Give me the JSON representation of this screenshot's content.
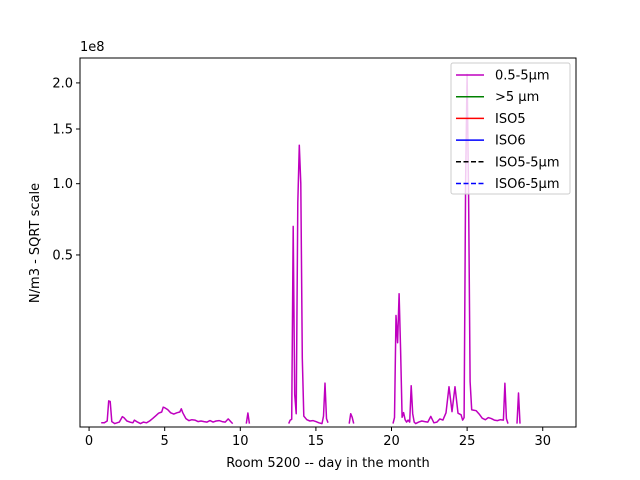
{
  "chart_data": {
    "type": "line",
    "xlabel": "Room 5200 -- day in the month",
    "ylabel": "N/m3 - SQRT scale",
    "offset_text": "1e8",
    "y_scale": "sqrt",
    "xlim": [
      -0.6,
      32.2
    ],
    "ylim": [
      0,
      2.3
    ],
    "x_ticks": [
      0,
      5,
      10,
      15,
      20,
      25,
      30
    ],
    "y_ticks": [
      0.5,
      1.0,
      1.5,
      2.0
    ],
    "y_tick_labels": [
      "0.5",
      "1.0",
      "1.5",
      "2.0"
    ],
    "x_tick_labels": [
      "0",
      "5",
      "10",
      "15",
      "20",
      "25",
      "30"
    ],
    "grid": false,
    "legend_position": "upper right",
    "legend": [
      {
        "label": "0.5-5µm",
        "color": "#bf00bf",
        "style": "solid"
      },
      {
        "label": ">5 µm",
        "color": "#008000",
        "style": "solid"
      },
      {
        "label": "ISO5",
        "color": "#ff0000",
        "style": "solid"
      },
      {
        "label": "ISO6",
        "color": "#0000ff",
        "style": "solid"
      },
      {
        "label": "ISO5-5µm",
        "color": "#000000",
        "style": "dashed"
      },
      {
        "label": "ISO6-5µm",
        "color": "#0000ff",
        "style": "dashed"
      }
    ],
    "series": [
      {
        "name": "0.5-5µm",
        "color": "#bf00bf",
        "segments": [
          {
            "x": [
              0.8,
              1.0,
              1.2,
              1.3,
              1.4,
              1.5,
              1.7,
              2.0,
              2.2,
              2.3,
              2.5,
              2.7,
              2.9,
              3.0,
              3.2,
              3.4,
              3.6,
              3.8,
              4.0,
              4.2,
              4.4,
              4.6,
              4.8,
              4.9,
              5.0,
              5.2,
              5.4,
              5.6,
              5.8,
              6.0,
              6.1,
              6.2,
              6.4,
              6.6,
              6.8,
              7.0,
              7.2,
              7.4,
              7.6,
              7.8,
              8.0,
              8.2,
              8.4,
              8.6,
              8.8,
              9.0,
              9.2,
              9.4,
              9.5
            ],
            "y": [
              0.0003,
              0.0003,
              0.0006,
              0.0115,
              0.011,
              0.0005,
              0.0002,
              0.0004,
              0.0018,
              0.0015,
              0.0006,
              0.0004,
              0.0003,
              0.0008,
              0.0004,
              0.0002,
              0.0004,
              0.0003,
              0.0006,
              0.0012,
              0.0021,
              0.0032,
              0.0038,
              0.0066,
              0.0063,
              0.0051,
              0.0034,
              0.0028,
              0.0034,
              0.0038,
              0.0056,
              0.0034,
              0.0012,
              0.0007,
              0.0009,
              0.0008,
              0.0005,
              0.0006,
              0.0005,
              0.0004,
              0.0007,
              0.0004,
              0.0006,
              0.0007,
              0.0005,
              0.0004,
              0.0011,
              0.0004,
              0.0002
            ]
          },
          {
            "x": [
              10.4,
              10.5,
              10.6
            ],
            "y": [
              0.0002,
              0.0033,
              0.0002
            ]
          },
          {
            "x": [
              13.2,
              13.3,
              13.4,
              13.5,
              13.6,
              13.7,
              13.8,
              13.9,
              14.0,
              14.1,
              14.2,
              14.4,
              14.6,
              14.8,
              15.0,
              15.2,
              15.4,
              15.5,
              15.6,
              15.7,
              15.8
            ],
            "y": [
              0.0002,
              0.0008,
              0.001,
              0.68,
              0.018,
              0.003,
              0.85,
              1.34,
              1.0,
              0.08,
              0.002,
              0.0009,
              0.0006,
              0.0007,
              0.0005,
              0.0003,
              0.0002,
              0.002,
              0.0325,
              0.0012,
              0.0003
            ]
          },
          {
            "x": [
              16.3
            ],
            "y": [
              0.0002
            ]
          },
          {
            "x": [
              17.2,
              17.3,
              17.4,
              17.5
            ],
            "y": [
              0.0002,
              0.003,
              0.0016,
              0.0002
            ]
          },
          {
            "x": [
              20.1,
              20.2,
              20.3,
              20.4,
              20.5,
              20.6,
              20.7,
              20.8,
              20.9,
              21.0,
              21.1,
              21.2,
              21.3,
              21.4,
              21.5,
              21.6,
              21.8,
              22.0,
              22.2,
              22.4,
              22.6,
              22.8,
              23.0,
              23.2,
              23.4,
              23.6,
              23.8,
              24.0,
              24.2,
              24.4,
              24.6,
              24.7,
              24.8,
              24.9,
              25.0,
              25.1,
              25.2,
              25.3,
              25.4,
              25.6,
              25.8,
              26.0,
              26.2,
              26.4,
              26.6,
              26.8,
              27.0,
              27.2,
              27.4,
              27.5,
              27.6,
              27.7
            ],
            "y": [
              0.0002,
              0.0015,
              0.21,
              0.12,
              0.3,
              0.1,
              0.0016,
              0.0035,
              0.0009,
              0.0004,
              0.0008,
              0.0004,
              0.0288,
              0.003,
              0.0004,
              0.0002,
              0.0004,
              0.0006,
              0.0005,
              0.0004,
              0.0019,
              0.0003,
              0.0004,
              0.0011,
              0.0008,
              0.0034,
              0.0275,
              0.004,
              0.0275,
              0.0032,
              0.0025,
              0.0008,
              0.0015,
              1.0,
              2.1,
              0.9,
              0.035,
              0.005,
              0.0048,
              0.0045,
              0.0028,
              0.0013,
              0.0009,
              0.0015,
              0.0012,
              0.0008,
              0.0007,
              0.0009,
              0.0008,
              0.0323,
              0.0012,
              0.0002
            ]
          },
          {
            "x": [
              28.3,
              28.4,
              28.5
            ],
            "y": [
              0.0002,
              0.0195,
              0.0002
            ]
          }
        ]
      }
    ]
  }
}
